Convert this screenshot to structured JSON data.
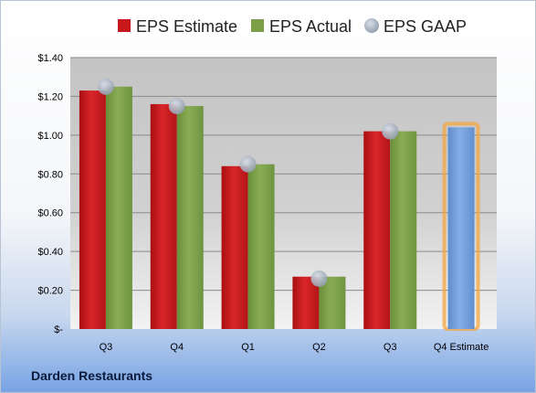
{
  "company": "Darden Restaurants",
  "chart_data": {
    "type": "bar",
    "categories": [
      "Q3",
      "Q4",
      "Q1",
      "Q2",
      "Q3",
      "Q4 Estimate"
    ],
    "series": [
      {
        "name": "EPS Estimate",
        "color": "#c8181c",
        "values": [
          1.23,
          1.16,
          0.84,
          0.27,
          1.02,
          null
        ]
      },
      {
        "name": "EPS Actual",
        "color": "#7ba046",
        "values": [
          1.25,
          1.15,
          0.85,
          0.27,
          1.02,
          null
        ]
      },
      {
        "name": "EPS GAAP",
        "color": "#aab6c6",
        "marker": "circle",
        "values": [
          1.25,
          1.15,
          0.85,
          0.26,
          1.02,
          null
        ]
      }
    ],
    "forecast": {
      "category": "Q4 Estimate",
      "value": 1.04,
      "color": "#6f9bd8",
      "glow": "#f3a540"
    },
    "y_ticks": [
      "$-",
      "$0.20",
      "$0.40",
      "$0.60",
      "$0.80",
      "$1.00",
      "$1.20",
      "$1.40"
    ],
    "ylim": [
      0,
      1.4
    ],
    "grid": true,
    "legend_position": "top"
  }
}
